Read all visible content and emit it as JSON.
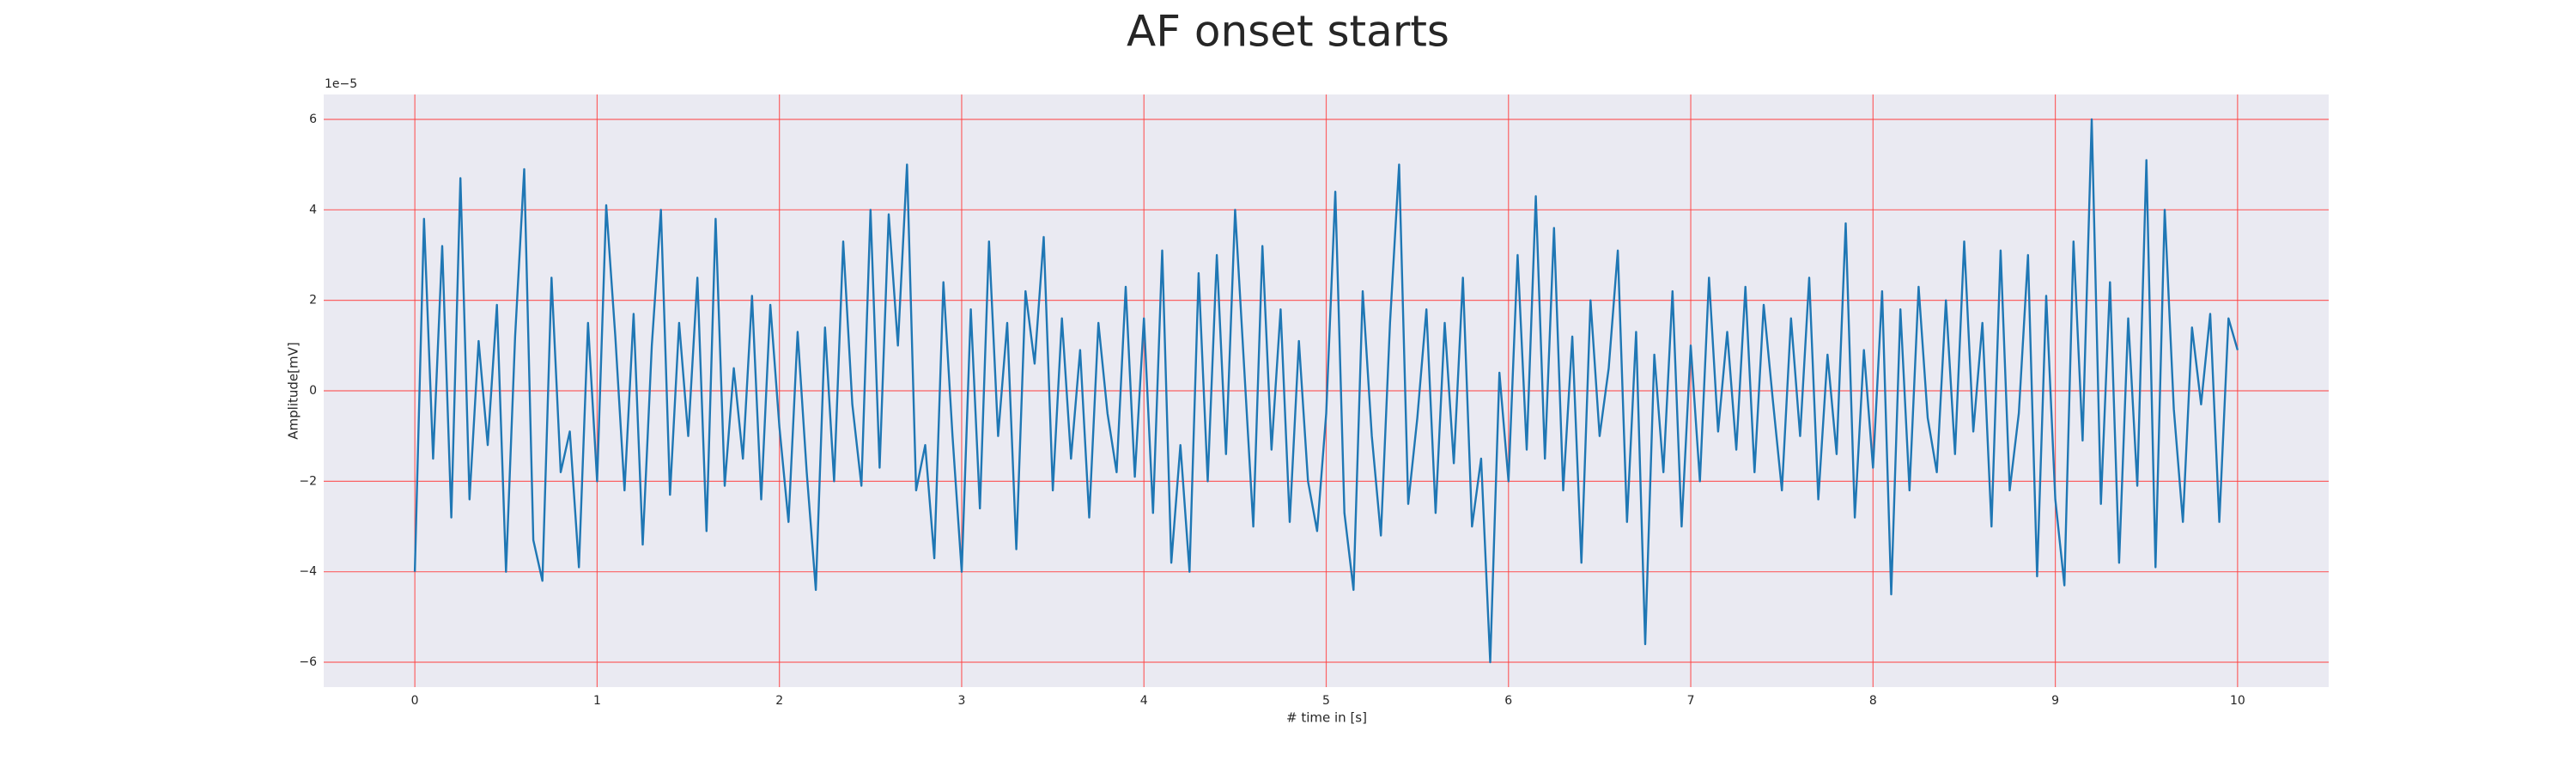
{
  "chart_data": {
    "type": "line",
    "title": "AF onset starts",
    "xlabel": "# time in [s]",
    "ylabel": "Amplitude[mV]",
    "y_offset_label": "1e−5",
    "color": "#1f77b4",
    "grid": true,
    "grid_color": "#ff4040",
    "background": "#eaeaf2",
    "xlim": [
      -0.5,
      10.5
    ],
    "ylim": [
      -6.55,
      6.55
    ],
    "xticks": [
      0,
      1,
      2,
      3,
      4,
      5,
      6,
      7,
      8,
      9,
      10
    ],
    "yticks": [
      {
        "value": -6,
        "label": "−6"
      },
      {
        "value": -4,
        "label": "−4"
      },
      {
        "value": -2,
        "label": "−2"
      },
      0,
      2,
      4,
      6
    ],
    "x": [
      0,
      0.05,
      0.1,
      0.15,
      0.2,
      0.25,
      0.3,
      0.35,
      0.4,
      0.45,
      0.5,
      0.55,
      0.6,
      0.65,
      0.7,
      0.75,
      0.8,
      0.85,
      0.9,
      0.95,
      1,
      1.05,
      1.1,
      1.15,
      1.2,
      1.25,
      1.3,
      1.35,
      1.4,
      1.45,
      1.5,
      1.55,
      1.6,
      1.65,
      1.7,
      1.75,
      1.8,
      1.85,
      1.9,
      1.95,
      2,
      2.05,
      2.1,
      2.15,
      2.2,
      2.25,
      2.3,
      2.35,
      2.4,
      2.45,
      2.5,
      2.55,
      2.6,
      2.65,
      2.7,
      2.75,
      2.8,
      2.85,
      2.9,
      2.95,
      3,
      3.05,
      3.1,
      3.15,
      3.2,
      3.25,
      3.3,
      3.35,
      3.4,
      3.45,
      3.5,
      3.55,
      3.6,
      3.65,
      3.7,
      3.75,
      3.8,
      3.85,
      3.9,
      3.95,
      4,
      4.05,
      4.1,
      4.15,
      4.2,
      4.25,
      4.3,
      4.35,
      4.4,
      4.45,
      4.5,
      4.55,
      4.6,
      4.65,
      4.7,
      4.75,
      4.8,
      4.85,
      4.9,
      4.95,
      5,
      5.05,
      5.1,
      5.15,
      5.2,
      5.25,
      5.3,
      5.35,
      5.4,
      5.45,
      5.5,
      5.55,
      5.6,
      5.65,
      5.7,
      5.75,
      5.8,
      5.85,
      5.9,
      5.95,
      6,
      6.05,
      6.1,
      6.15,
      6.2,
      6.25,
      6.3,
      6.35,
      6.4,
      6.45,
      6.5,
      6.55,
      6.6,
      6.65,
      6.7,
      6.75,
      6.8,
      6.85,
      6.9,
      6.95,
      7,
      7.05,
      7.1,
      7.15,
      7.2,
      7.25,
      7.3,
      7.35,
      7.4,
      7.45,
      7.5,
      7.55,
      7.6,
      7.65,
      7.7,
      7.75,
      7.8,
      7.85,
      7.9,
      7.95,
      8,
      8.05,
      8.1,
      8.15,
      8.2,
      8.25,
      8.3,
      8.35,
      8.4,
      8.45,
      8.5,
      8.55,
      8.6,
      8.65,
      8.7,
      8.75,
      8.8,
      8.85,
      8.9,
      8.95,
      9,
      9.05,
      9.1,
      9.15,
      9.2,
      9.25,
      9.3,
      9.35,
      9.4,
      9.45,
      9.5,
      9.55,
      9.6,
      9.65,
      9.7,
      9.75,
      9.8,
      9.85,
      9.9,
      9.95,
      10
    ],
    "values": [
      -4.0,
      3.8,
      -1.5,
      3.2,
      -2.8,
      4.7,
      -2.4,
      1.1,
      -1.2,
      1.9,
      -4.0,
      1.2,
      4.9,
      -3.3,
      -4.2,
      2.5,
      -1.8,
      -0.9,
      -3.9,
      1.5,
      -2.0,
      4.1,
      1.2,
      -2.2,
      1.7,
      -3.4,
      1.0,
      4.0,
      -2.3,
      1.5,
      -1.0,
      2.5,
      -3.1,
      3.8,
      -2.1,
      0.5,
      -1.5,
      2.1,
      -2.4,
      1.9,
      -0.8,
      -2.9,
      1.3,
      -1.8,
      -4.4,
      1.4,
      -2.0,
      3.3,
      -0.3,
      -2.1,
      4.0,
      -1.7,
      3.9,
      1.0,
      5.0,
      -2.2,
      -1.2,
      -3.7,
      2.4,
      -1.0,
      -4.0,
      1.8,
      -2.6,
      3.3,
      -1.0,
      1.5,
      -3.5,
      2.2,
      0.6,
      3.4,
      -2.2,
      1.6,
      -1.5,
      0.9,
      -2.8,
      1.5,
      -0.5,
      -1.8,
      2.3,
      -1.9,
      1.6,
      -2.7,
      3.1,
      -3.8,
      -1.2,
      -4.0,
      2.6,
      -2.0,
      3.0,
      -1.4,
      4.0,
      0.5,
      -3.0,
      3.2,
      -1.3,
      1.8,
      -2.9,
      1.1,
      -2.0,
      -3.1,
      -0.5,
      4.4,
      -2.7,
      -4.4,
      2.2,
      -1.0,
      -3.2,
      1.5,
      5.0,
      -2.5,
      -0.6,
      1.8,
      -2.7,
      1.5,
      -1.6,
      2.5,
      -3.0,
      -1.5,
      -6.0,
      0.4,
      -2.0,
      3.0,
      -1.3,
      4.3,
      -1.5,
      3.6,
      -2.2,
      1.2,
      -3.8,
      2.0,
      -1.0,
      0.5,
      3.1,
      -2.9,
      1.3,
      -5.6,
      0.8,
      -1.8,
      2.2,
      -3.0,
      1.0,
      -2.0,
      2.5,
      -0.9,
      1.3,
      -1.3,
      2.3,
      -1.8,
      1.9,
      -0.2,
      -2.2,
      1.6,
      -1.0,
      2.5,
      -2.4,
      0.8,
      -1.4,
      3.7,
      -2.8,
      0.9,
      -1.7,
      2.2,
      -4.5,
      1.8,
      -2.2,
      2.3,
      -0.6,
      -1.8,
      2.0,
      -1.4,
      3.3,
      -0.9,
      1.5,
      -3.0,
      3.1,
      -2.2,
      -0.5,
      3.0,
      -4.1,
      2.1,
      -2.4,
      -4.3,
      3.3,
      -1.1,
      6.0,
      -2.5,
      2.4,
      -3.8,
      1.6,
      -2.1,
      5.1,
      -3.9,
      4.0,
      -0.4,
      -2.9,
      1.4,
      -0.3,
      1.7,
      -2.9,
      1.6,
      0.9
    ]
  }
}
